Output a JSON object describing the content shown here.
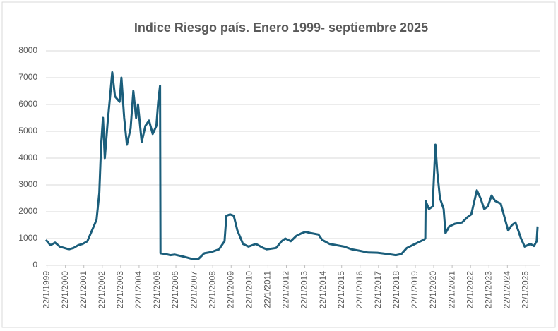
{
  "chart_data": {
    "type": "line",
    "title": "Indice Riesgo país. Enero 1999- septiembre 2025",
    "x": [
      1999.0,
      1999.25,
      1999.5,
      1999.75,
      2000.0,
      2000.25,
      2000.5,
      2000.75,
      2001.0,
      2001.25,
      2001.5,
      2001.75,
      2001.9,
      2002.0,
      2002.1,
      2002.2,
      2002.35,
      2002.5,
      2002.6,
      2002.75,
      2003.0,
      2003.1,
      2003.25,
      2003.4,
      2003.6,
      2003.75,
      2003.9,
      2004.0,
      2004.2,
      2004.4,
      2004.6,
      2004.8,
      2005.0,
      2005.1,
      2005.2,
      2005.22,
      2005.5,
      2005.75,
      2006.0,
      2006.5,
      2007.0,
      2007.3,
      2007.6,
      2008.0,
      2008.4,
      2008.7,
      2008.8,
      2009.0,
      2009.2,
      2009.4,
      2009.7,
      2010.0,
      2010.4,
      2010.8,
      2011.0,
      2011.5,
      2011.8,
      2012.0,
      2012.3,
      2012.6,
      2012.9,
      2013.1,
      2013.4,
      2013.8,
      2014.0,
      2014.4,
      2014.8,
      2015.2,
      2015.6,
      2016.0,
      2016.5,
      2017.0,
      2017.5,
      2018.0,
      2018.3,
      2018.6,
      2018.9,
      2019.2,
      2019.5,
      2019.6,
      2019.62,
      2019.8,
      2020.0,
      2020.15,
      2020.25,
      2020.4,
      2020.6,
      2020.7,
      2020.9,
      2021.2,
      2021.6,
      2021.9,
      2022.1,
      2022.4,
      2022.6,
      2022.8,
      2023.0,
      2023.2,
      2023.4,
      2023.7,
      2023.9,
      2024.1,
      2024.3,
      2024.5,
      2024.8,
      2025.0,
      2025.3,
      2025.5,
      2025.65,
      2025.7
    ],
    "series": [
      {
        "name": "Riesgo país",
        "color": "#1b5e7b",
        "values": [
          950,
          750,
          850,
          700,
          650,
          600,
          650,
          750,
          800,
          900,
          1300,
          1700,
          2700,
          4500,
          5500,
          4000,
          5300,
          6400,
          7200,
          6300,
          6100,
          7000,
          5500,
          4500,
          5100,
          6500,
          5500,
          6000,
          4600,
          5200,
          5400,
          4900,
          5200,
          6100,
          6700,
          450,
          420,
          380,
          400,
          320,
          230,
          250,
          450,
          500,
          600,
          900,
          1850,
          1900,
          1850,
          1300,
          800,
          700,
          800,
          650,
          600,
          650,
          900,
          1000,
          900,
          1100,
          1200,
          1250,
          1200,
          1150,
          950,
          800,
          750,
          700,
          600,
          550,
          480,
          470,
          430,
          380,
          420,
          650,
          750,
          850,
          950,
          1000,
          2400,
          2100,
          2200,
          4500,
          3500,
          2500,
          2100,
          1200,
          1450,
          1550,
          1600,
          1800,
          1900,
          2800,
          2500,
          2100,
          2200,
          2600,
          2400,
          2300,
          1800,
          1300,
          1500,
          1600,
          1000,
          700,
          800,
          720,
          900,
          1450
        ]
      }
    ],
    "xlim": [
      1999.0,
      2025.85
    ],
    "xticks": [
      {
        "value": 1999.06,
        "label": "22/1/1999"
      },
      {
        "value": 2000.06,
        "label": "22/1/2000"
      },
      {
        "value": 2001.06,
        "label": "22/1/2001"
      },
      {
        "value": 2002.06,
        "label": "22/1/2002"
      },
      {
        "value": 2003.06,
        "label": "22/1/2003"
      },
      {
        "value": 2004.06,
        "label": "22/1/2004"
      },
      {
        "value": 2005.06,
        "label": "22/1/2005"
      },
      {
        "value": 2006.06,
        "label": "22/1/2006"
      },
      {
        "value": 2007.06,
        "label": "22/1/2007"
      },
      {
        "value": 2008.06,
        "label": "22/1/2008"
      },
      {
        "value": 2009.06,
        "label": "22/1/2009"
      },
      {
        "value": 2010.06,
        "label": "22/1/2010"
      },
      {
        "value": 2011.06,
        "label": "22/1/2011"
      },
      {
        "value": 2012.06,
        "label": "22/1/2012"
      },
      {
        "value": 2013.06,
        "label": "22/1/2013"
      },
      {
        "value": 2014.06,
        "label": "22/1/2014"
      },
      {
        "value": 2015.06,
        "label": "22/1/2015"
      },
      {
        "value": 2016.06,
        "label": "22/1/2016"
      },
      {
        "value": 2017.06,
        "label": "22/1/2017"
      },
      {
        "value": 2018.06,
        "label": "22/1/2018"
      },
      {
        "value": 2019.06,
        "label": "22/1/2019"
      },
      {
        "value": 2020.06,
        "label": "22/1/2020"
      },
      {
        "value": 2021.06,
        "label": "22/1/2021"
      },
      {
        "value": 2022.06,
        "label": "22/1/2022"
      },
      {
        "value": 2023.06,
        "label": "22/1/2023"
      },
      {
        "value": 2024.06,
        "label": "22/1/2024"
      },
      {
        "value": 2025.06,
        "label": "22/1/2025"
      }
    ],
    "ylim": [
      0,
      8000
    ],
    "yticks": [
      0,
      1000,
      2000,
      3000,
      4000,
      5000,
      6000,
      7000,
      8000
    ],
    "grid": true
  }
}
